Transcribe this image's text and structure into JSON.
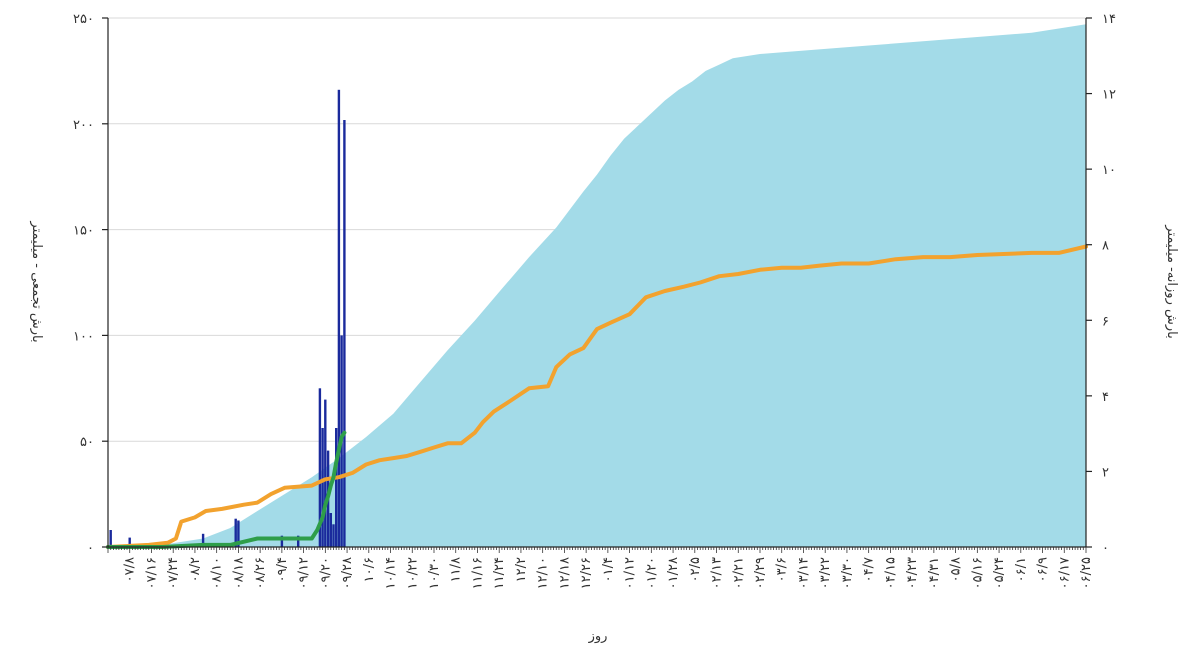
{
  "chart_data": {
    "type": "area",
    "title": "",
    "xlabel": "روز",
    "ylabel_left": "بارش تجمعی - میلیمتر",
    "ylabel_right": "بارش روزانه- میلیمتر",
    "ylim_left": [
      0,
      250
    ],
    "ylim_right": [
      0,
      14
    ],
    "yticks_left": [
      "۰",
      "۵۰",
      "۱۰۰",
      "۱۵۰",
      "۲۰۰",
      "۲۵۰"
    ],
    "yticks_right": [
      "۰",
      "۲",
      "۴",
      "۶",
      "۸",
      "۱۰",
      "۱۲",
      "۱۴"
    ],
    "x_range_days": [
      0,
      360
    ],
    "x_ticks": [
      {
        "day": 8,
        "label": "۰۷/۸"
      },
      {
        "day": 16,
        "label": "۰۷/۱۶"
      },
      {
        "day": 24,
        "label": "۰۷/۲۴"
      },
      {
        "day": 32,
        "label": "۰۸/۲"
      },
      {
        "day": 40,
        "label": "۰۸/۱۰"
      },
      {
        "day": 48,
        "label": "۰۸/۱۸"
      },
      {
        "day": 56,
        "label": "۰۸/۲۶"
      },
      {
        "day": 64,
        "label": "۰۹/۴"
      },
      {
        "day": 72,
        "label": "۰۹/۱۲"
      },
      {
        "day": 80,
        "label": "۰۹/۲۰"
      },
      {
        "day": 88,
        "label": "۰۹/۲۸"
      },
      {
        "day": 96,
        "label": "۱۰/۶"
      },
      {
        "day": 104,
        "label": "۱۰/۱۴"
      },
      {
        "day": 112,
        "label": "۱۰/۲۲"
      },
      {
        "day": 120,
        "label": "۱۰/۳۰"
      },
      {
        "day": 128,
        "label": "۱۱/۸"
      },
      {
        "day": 136,
        "label": "۱۱/۱۶"
      },
      {
        "day": 144,
        "label": "۱۱/۲۴"
      },
      {
        "day": 152,
        "label": "۱۲/۲"
      },
      {
        "day": 160,
        "label": "۱۲/۱۰"
      },
      {
        "day": 168,
        "label": "۱۲/۱۸"
      },
      {
        "day": 176,
        "label": "۱۲/۲۶"
      },
      {
        "day": 184,
        "label": "۰۱/۴"
      },
      {
        "day": 192,
        "label": "۰۱/۱۲"
      },
      {
        "day": 200,
        "label": "۰۱/۲۰"
      },
      {
        "day": 208,
        "label": "۰۱/۲۸"
      },
      {
        "day": 216,
        "label": "۰۲/۵"
      },
      {
        "day": 224,
        "label": "۰۲/۱۳"
      },
      {
        "day": 232,
        "label": "۰۲/۲۱"
      },
      {
        "day": 240,
        "label": "۰۲/۲۹"
      },
      {
        "day": 248,
        "label": "۰۳/۶"
      },
      {
        "day": 256,
        "label": "۰۳/۱۴"
      },
      {
        "day": 264,
        "label": "۰۳/۲۲"
      },
      {
        "day": 272,
        "label": "۰۳/۳۰"
      },
      {
        "day": 280,
        "label": "۰۴/۷"
      },
      {
        "day": 288,
        "label": "۰۴/۱۵"
      },
      {
        "day": 296,
        "label": "۰۴/۲۳"
      },
      {
        "day": 304,
        "label": "۰۴/۳۱"
      },
      {
        "day": 312,
        "label": "۰۵/۸"
      },
      {
        "day": 320,
        "label": "۰۵/۱۶"
      },
      {
        "day": 328,
        "label": "۰۵/۲۴"
      },
      {
        "day": 336,
        "label": "۰۶/۱"
      },
      {
        "day": 344,
        "label": "۰۶/۹"
      },
      {
        "day": 352,
        "label": "۰۶/۱۷"
      },
      {
        "day": 360,
        "label": "۰۶/۲۵"
      }
    ],
    "series": [
      {
        "type": "area",
        "axis": "left",
        "color": "#a3dbe8",
        "points": [
          [
            0,
            0
          ],
          [
            20,
            1
          ],
          [
            35,
            4
          ],
          [
            45,
            9
          ],
          [
            55,
            17
          ],
          [
            65,
            25
          ],
          [
            75,
            33
          ],
          [
            85,
            42
          ],
          [
            95,
            52
          ],
          [
            105,
            63
          ],
          [
            115,
            78
          ],
          [
            125,
            93
          ],
          [
            135,
            107
          ],
          [
            145,
            122
          ],
          [
            155,
            137
          ],
          [
            165,
            151
          ],
          [
            175,
            168
          ],
          [
            180,
            176
          ],
          [
            185,
            185
          ],
          [
            190,
            193
          ],
          [
            195,
            199
          ],
          [
            200,
            205
          ],
          [
            205,
            211
          ],
          [
            210,
            216
          ],
          [
            215,
            220
          ],
          [
            220,
            225
          ],
          [
            225,
            228
          ],
          [
            230,
            231
          ],
          [
            240,
            233
          ],
          [
            250,
            234
          ],
          [
            260,
            235
          ],
          [
            270,
            236
          ],
          [
            280,
            237
          ],
          [
            300,
            239
          ],
          [
            320,
            241
          ],
          [
            340,
            243
          ],
          [
            360,
            247
          ]
        ]
      },
      {
        "type": "line",
        "axis": "left",
        "color": "#f2a22e",
        "points": [
          [
            0,
            0
          ],
          [
            15,
            1
          ],
          [
            22,
            2
          ],
          [
            25,
            4
          ],
          [
            27,
            12
          ],
          [
            32,
            14
          ],
          [
            36,
            17
          ],
          [
            42,
            18
          ],
          [
            50,
            20
          ],
          [
            55,
            21
          ],
          [
            60,
            25
          ],
          [
            65,
            28
          ],
          [
            75,
            29
          ],
          [
            80,
            32
          ],
          [
            85,
            33
          ],
          [
            90,
            35
          ],
          [
            95,
            39
          ],
          [
            100,
            41
          ],
          [
            105,
            42
          ],
          [
            110,
            43
          ],
          [
            115,
            45
          ],
          [
            120,
            47
          ],
          [
            125,
            49
          ],
          [
            130,
            49
          ],
          [
            135,
            54
          ],
          [
            138,
            59
          ],
          [
            142,
            64
          ],
          [
            148,
            69
          ],
          [
            155,
            75
          ],
          [
            162,
            76
          ],
          [
            165,
            85
          ],
          [
            170,
            91
          ],
          [
            175,
            94
          ],
          [
            180,
            103
          ],
          [
            185,
            106
          ],
          [
            192,
            110
          ],
          [
            198,
            118
          ],
          [
            205,
            121
          ],
          [
            212,
            123
          ],
          [
            218,
            125
          ],
          [
            225,
            128
          ],
          [
            232,
            129
          ],
          [
            240,
            131
          ],
          [
            248,
            132
          ],
          [
            255,
            132
          ],
          [
            262,
            133
          ],
          [
            270,
            134
          ],
          [
            280,
            134
          ],
          [
            290,
            136
          ],
          [
            300,
            137
          ],
          [
            310,
            137
          ],
          [
            320,
            138
          ],
          [
            340,
            139
          ],
          [
            350,
            139
          ],
          [
            360,
            142
          ]
        ]
      },
      {
        "type": "line",
        "axis": "left",
        "color": "#2e9e4a",
        "points": [
          [
            0,
            0
          ],
          [
            20,
            0
          ],
          [
            35,
            1
          ],
          [
            45,
            1
          ],
          [
            55,
            4
          ],
          [
            70,
            4
          ],
          [
            75,
            4
          ],
          [
            77,
            8
          ],
          [
            79,
            14
          ],
          [
            80,
            20
          ],
          [
            81,
            24
          ],
          [
            82,
            29
          ],
          [
            83,
            33
          ],
          [
            84,
            40
          ],
          [
            85,
            46
          ],
          [
            86,
            52
          ],
          [
            87,
            54
          ]
        ]
      },
      {
        "type": "bar",
        "axis": "right",
        "color": "#1a2a9c",
        "points": [
          [
            1,
            0.45
          ],
          [
            8,
            0.25
          ],
          [
            35,
            0.35
          ],
          [
            47,
            0.75
          ],
          [
            48,
            0.7
          ],
          [
            64,
            0.3
          ],
          [
            70,
            0.3
          ],
          [
            78,
            4.2
          ],
          [
            79,
            3.15
          ],
          [
            80,
            3.9
          ],
          [
            81,
            2.55
          ],
          [
            82,
            0.9
          ],
          [
            83,
            0.6
          ],
          [
            84,
            3.15
          ],
          [
            85,
            12.1
          ],
          [
            86,
            5.6
          ],
          [
            87,
            11.3
          ]
        ]
      }
    ]
  }
}
